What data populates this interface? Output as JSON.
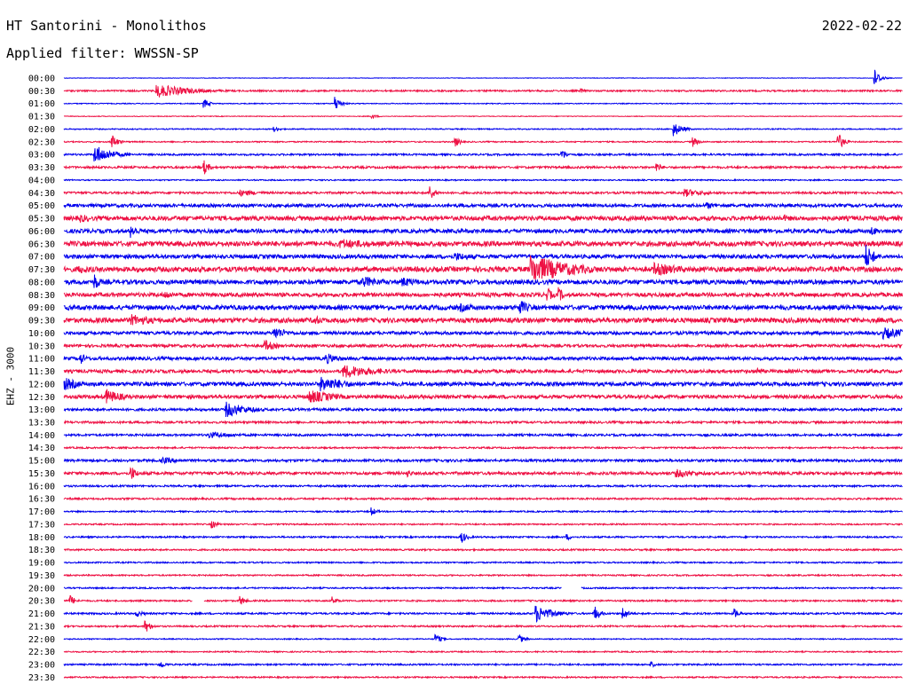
{
  "header": {
    "station": "HT Santorini - Monolithos",
    "date": "2022-02-22",
    "filter_label": "Applied filter: WWSSN-SP"
  },
  "channel_label": "EHZ - 3000",
  "chart_data": {
    "type": "line",
    "subtype": "helicorder",
    "row_labels": [
      "00:00",
      "00:30",
      "01:00",
      "01:30",
      "02:00",
      "02:30",
      "03:00",
      "03:30",
      "04:00",
      "04:30",
      "05:00",
      "05:30",
      "06:00",
      "06:30",
      "07:00",
      "07:30",
      "08:00",
      "08:30",
      "09:00",
      "09:30",
      "10:00",
      "10:30",
      "11:00",
      "11:30",
      "12:00",
      "12:30",
      "13:00",
      "13:30",
      "14:00",
      "14:30",
      "15:00",
      "15:30",
      "16:00",
      "16:30",
      "17:00",
      "17:30",
      "18:00",
      "18:30",
      "19:00",
      "19:30",
      "20:00",
      "20:30",
      "21:00",
      "21:30",
      "22:00",
      "22:30",
      "23:00",
      "23:30"
    ],
    "colors": [
      "#0000ee",
      "#ee1144"
    ],
    "noise_levels": [
      0.3,
      0.9,
      0.5,
      0.4,
      0.6,
      0.7,
      1.0,
      1.2,
      0.7,
      1.2,
      1.8,
      2.5,
      2.2,
      2.8,
      2.2,
      2.8,
      2.5,
      2.2,
      2.6,
      2.7,
      1.8,
      1.6,
      1.8,
      1.8,
      2.2,
      2.0,
      1.4,
      1.2,
      1.2,
      0.9,
      1.4,
      1.6,
      1.0,
      1.0,
      0.8,
      0.8,
      0.9,
      0.9,
      0.8,
      0.8,
      0.8,
      0.9,
      1.0,
      0.9,
      0.6,
      0.7,
      0.9,
      0.8
    ],
    "events": [
      {
        "row": 0,
        "min": 29.0,
        "amp": 11,
        "dur": 0.2
      },
      {
        "row": 1,
        "min": 3.3,
        "amp": 8,
        "dur": 1.2
      },
      {
        "row": 1,
        "min": 18.5,
        "amp": 3,
        "dur": 0.2
      },
      {
        "row": 2,
        "min": 9.7,
        "amp": 9,
        "dur": 0.2
      },
      {
        "row": 2,
        "min": 5.0,
        "amp": 6,
        "dur": 0.2
      },
      {
        "row": 3,
        "min": 11.0,
        "amp": 3,
        "dur": 0.2
      },
      {
        "row": 4,
        "min": 21.8,
        "amp": 9,
        "dur": 0.3
      },
      {
        "row": 4,
        "min": 7.5,
        "amp": 4,
        "dur": 0.2
      },
      {
        "row": 5,
        "min": 27.7,
        "amp": 11,
        "dur": 0.2
      },
      {
        "row": 5,
        "min": 1.7,
        "amp": 10,
        "dur": 0.2
      },
      {
        "row": 5,
        "min": 14.0,
        "amp": 6,
        "dur": 0.2
      },
      {
        "row": 5,
        "min": 22.5,
        "amp": 6,
        "dur": 0.2
      },
      {
        "row": 6,
        "min": 1.1,
        "amp": 11,
        "dur": 0.6
      },
      {
        "row": 6,
        "min": 17.8,
        "amp": 7,
        "dur": 0.2
      },
      {
        "row": 7,
        "min": 5.0,
        "amp": 9,
        "dur": 0.2
      },
      {
        "row": 7,
        "min": 21.2,
        "amp": 6,
        "dur": 0.2
      },
      {
        "row": 9,
        "min": 6.3,
        "amp": 4,
        "dur": 0.8
      },
      {
        "row": 9,
        "min": 13.1,
        "amp": 9,
        "dur": 0.2
      },
      {
        "row": 9,
        "min": 22.2,
        "amp": 5,
        "dur": 0.8
      },
      {
        "row": 10,
        "min": 23.0,
        "amp": 4,
        "dur": 0.5
      },
      {
        "row": 11,
        "min": 25.8,
        "amp": 4,
        "dur": 0.5
      },
      {
        "row": 11,
        "min": 0.6,
        "amp": 5,
        "dur": 0.5
      },
      {
        "row": 12,
        "min": 2.4,
        "amp": 8,
        "dur": 0.3
      },
      {
        "row": 12,
        "min": 28.9,
        "amp": 6,
        "dur": 0.3
      },
      {
        "row": 13,
        "min": 9.9,
        "amp": 6,
        "dur": 1.5
      },
      {
        "row": 14,
        "min": 28.7,
        "amp": 15,
        "dur": 0.3
      },
      {
        "row": 14,
        "min": 14.0,
        "amp": 5,
        "dur": 1.0
      },
      {
        "row": 15,
        "min": 16.7,
        "amp": 17,
        "dur": 1.5
      },
      {
        "row": 15,
        "min": 21.1,
        "amp": 8,
        "dur": 1.2
      },
      {
        "row": 15,
        "min": 0.5,
        "amp": 5,
        "dur": 1.0
      },
      {
        "row": 16,
        "min": 1.1,
        "amp": 10,
        "dur": 0.2
      },
      {
        "row": 16,
        "min": 10.7,
        "amp": 7,
        "dur": 0.8
      },
      {
        "row": 16,
        "min": 12.1,
        "amp": 6,
        "dur": 0.8
      },
      {
        "row": 17,
        "min": 17.3,
        "amp": 9,
        "dur": 0.2
      },
      {
        "row": 17,
        "min": 17.7,
        "amp": 9,
        "dur": 0.2
      },
      {
        "row": 17,
        "min": 3.6,
        "amp": 5,
        "dur": 0.5
      },
      {
        "row": 18,
        "min": 16.3,
        "amp": 9,
        "dur": 0.4
      },
      {
        "row": 18,
        "min": 14.2,
        "amp": 5,
        "dur": 1.0
      },
      {
        "row": 19,
        "min": 2.4,
        "amp": 7,
        "dur": 1.0
      },
      {
        "row": 19,
        "min": 8.9,
        "amp": 6,
        "dur": 0.5
      },
      {
        "row": 20,
        "min": 7.5,
        "amp": 8,
        "dur": 0.5
      },
      {
        "row": 20,
        "min": 29.3,
        "amp": 7,
        "dur": 1.0
      },
      {
        "row": 21,
        "min": 7.2,
        "amp": 7,
        "dur": 0.4
      },
      {
        "row": 22,
        "min": 9.4,
        "amp": 6,
        "dur": 0.6
      },
      {
        "row": 22,
        "min": 0.6,
        "amp": 7,
        "dur": 0.2
      },
      {
        "row": 23,
        "min": 10.0,
        "amp": 8,
        "dur": 1.3
      },
      {
        "row": 23,
        "min": 24.8,
        "amp": 5,
        "dur": 0.3
      },
      {
        "row": 24,
        "min": 9.2,
        "amp": 9,
        "dur": 1.0
      },
      {
        "row": 24,
        "min": 0.0,
        "amp": 8,
        "dur": 0.6
      },
      {
        "row": 25,
        "min": 1.5,
        "amp": 9,
        "dur": 0.6
      },
      {
        "row": 25,
        "min": 8.8,
        "amp": 8,
        "dur": 1.0
      },
      {
        "row": 26,
        "min": 5.8,
        "amp": 9,
        "dur": 0.8
      },
      {
        "row": 28,
        "min": 5.2,
        "amp": 4,
        "dur": 1.0
      },
      {
        "row": 30,
        "min": 3.5,
        "amp": 4,
        "dur": 0.8
      },
      {
        "row": 31,
        "min": 2.4,
        "amp": 9,
        "dur": 0.2
      },
      {
        "row": 31,
        "min": 21.9,
        "amp": 5,
        "dur": 1.0
      },
      {
        "row": 31,
        "min": 12.3,
        "amp": 5,
        "dur": 0.2
      },
      {
        "row": 34,
        "min": 11.0,
        "amp": 5,
        "dur": 0.2
      },
      {
        "row": 35,
        "min": 5.3,
        "amp": 5,
        "dur": 0.2
      },
      {
        "row": 36,
        "min": 14.2,
        "amp": 8,
        "dur": 0.2
      },
      {
        "row": 36,
        "min": 18.0,
        "amp": 4,
        "dur": 0.2
      },
      {
        "row": 41,
        "min": 0.2,
        "amp": 7,
        "dur": 0.2
      },
      {
        "row": 41,
        "min": 6.3,
        "amp": 6,
        "dur": 0.2
      },
      {
        "row": 41,
        "min": 9.6,
        "amp": 5,
        "dur": 0.2
      },
      {
        "row": 42,
        "min": 16.9,
        "amp": 10,
        "dur": 0.6
      },
      {
        "row": 42,
        "min": 19.0,
        "amp": 9,
        "dur": 0.2
      },
      {
        "row": 42,
        "min": 20.0,
        "amp": 8,
        "dur": 0.2
      },
      {
        "row": 42,
        "min": 24.0,
        "amp": 6,
        "dur": 0.2
      },
      {
        "row": 42,
        "min": 2.6,
        "amp": 4,
        "dur": 0.3
      },
      {
        "row": 43,
        "min": 2.9,
        "amp": 8,
        "dur": 0.2
      },
      {
        "row": 44,
        "min": 13.3,
        "amp": 6,
        "dur": 0.2
      },
      {
        "row": 44,
        "min": 16.3,
        "amp": 5,
        "dur": 0.2
      },
      {
        "row": 46,
        "min": 3.4,
        "amp": 6,
        "dur": 0.2
      },
      {
        "row": 46,
        "min": 21.0,
        "amp": 4,
        "dur": 0.2
      }
    ],
    "gaps": [
      {
        "row": 40,
        "from_min": 17.8,
        "to_min": 18.5
      },
      {
        "row": 41,
        "from_min": 4.6,
        "to_min": 5.0
      }
    ]
  }
}
